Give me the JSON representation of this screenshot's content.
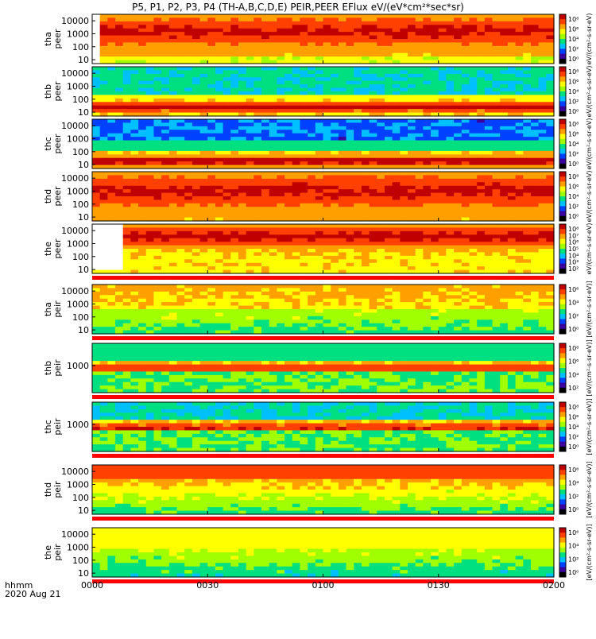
{
  "chart_data": {
    "type": "heatmap",
    "title": "P5, P1, P2, P3, P4 (TH-A,B,C,D,E) PEIR,PEER EFlux eV/(eV*cm²*sec*sr)",
    "xlabel": "hhmm",
    "date_label": "2020 Aug 21",
    "x_ticks": [
      "0000",
      "0030",
      "0100",
      "0130",
      "0200"
    ],
    "x_range_minutes": [
      0,
      120
    ],
    "colorbar_unit_eeer": "eV/(cm²-s-sr-eV)",
    "colorbar_unit_eier": "[eV/(cm²-s-sr-eV)]",
    "panels": [
      {
        "id": "tha-peer",
        "label1": "tha",
        "label2": "peer",
        "y_ticks": [
          "10",
          "100",
          "1000",
          "10000"
        ],
        "cbar_ticks": [
          "10⁸",
          "10⁶",
          "10⁴",
          "10²",
          "10⁰"
        ],
        "cbar_unit": "eV/(cm²-s-sr-eV)"
      },
      {
        "id": "thb-peer",
        "label1": "thb",
        "label2": "peer",
        "y_ticks": [
          "10",
          "100",
          "1000",
          "10000"
        ],
        "cbar_ticks": [
          "10⁸",
          "10⁶",
          "10⁴",
          "10²",
          "10⁰"
        ],
        "cbar_unit": "eV/(cm²-s-sr-eV)"
      },
      {
        "id": "thc-peer",
        "label1": "thc",
        "label2": "peer",
        "y_ticks": [
          "10",
          "100",
          "1000",
          "10000"
        ],
        "cbar_ticks": [
          "10⁸",
          "10⁶",
          "10⁴",
          "10²",
          "10⁰"
        ],
        "cbar_unit": "eV/(cm²-s-sr-eV)"
      },
      {
        "id": "thd-peer",
        "label1": "thd",
        "label2": "peer",
        "y_ticks": [
          "10",
          "100",
          "1000",
          "10000"
        ],
        "cbar_ticks": [
          "10⁸",
          "10⁶",
          "10⁴",
          "10²",
          "10⁰"
        ],
        "cbar_unit": "eV/(cm²-s-sr-eV)"
      },
      {
        "id": "the-peer",
        "label1": "the",
        "label2": "peer",
        "y_ticks": [
          "10",
          "100",
          "1000",
          "10000"
        ],
        "cbar_ticks": [
          "10⁸",
          "10⁷",
          "10⁶",
          "10⁵",
          "10⁴",
          "10³",
          "10²"
        ],
        "cbar_unit": "eV/(cm²-s-sr-eV)"
      },
      {
        "id": "tha-peir",
        "label1": "tha",
        "label2": "peir",
        "y_ticks": [
          "10",
          "100",
          "1000",
          "10000"
        ],
        "cbar_ticks": [
          "10⁶",
          "10⁴",
          "10²",
          "10⁰"
        ],
        "cbar_unit": "[eV/(cm²-s-sr-eV)]"
      },
      {
        "id": "thb-peir",
        "label1": "thb",
        "label2": "peir",
        "y_ticks": [
          "1000"
        ],
        "cbar_ticks": [
          "10⁸",
          "10⁶",
          "10⁴",
          "10²"
        ],
        "cbar_unit": "[eV/(cm²-s-sr-eV)]"
      },
      {
        "id": "thc-peir",
        "label1": "thc",
        "label2": "peir",
        "y_ticks": [
          "1000"
        ],
        "cbar_ticks": [
          "10⁸",
          "10⁶",
          "10⁴",
          "10²",
          "10⁰"
        ],
        "cbar_unit": "[eV/(cm²-s-sr-eV)]"
      },
      {
        "id": "thd-peir",
        "label1": "thd",
        "label2": "peir",
        "y_ticks": [
          "10",
          "100",
          "1000",
          "10000"
        ],
        "cbar_ticks": [
          "10⁶",
          "10⁴",
          "10²",
          "10⁰"
        ],
        "cbar_unit": "[eV/(cm²-s-sr-eV)]"
      },
      {
        "id": "the-peir",
        "label1": "the",
        "label2": "peir",
        "y_ticks": [
          "10",
          "100",
          "1000",
          "10000"
        ],
        "cbar_ticks": [
          "10⁶",
          "10⁴",
          "10²",
          "10⁰"
        ],
        "cbar_unit": "[eV/(cm²-s-sr-eV)]"
      }
    ],
    "colorscale": [
      "#000000",
      "#3a00a0",
      "#0040ff",
      "#00c0ff",
      "#00e080",
      "#a0ff00",
      "#ffff00",
      "#ffa000",
      "#ff4000",
      "#c00000"
    ]
  }
}
